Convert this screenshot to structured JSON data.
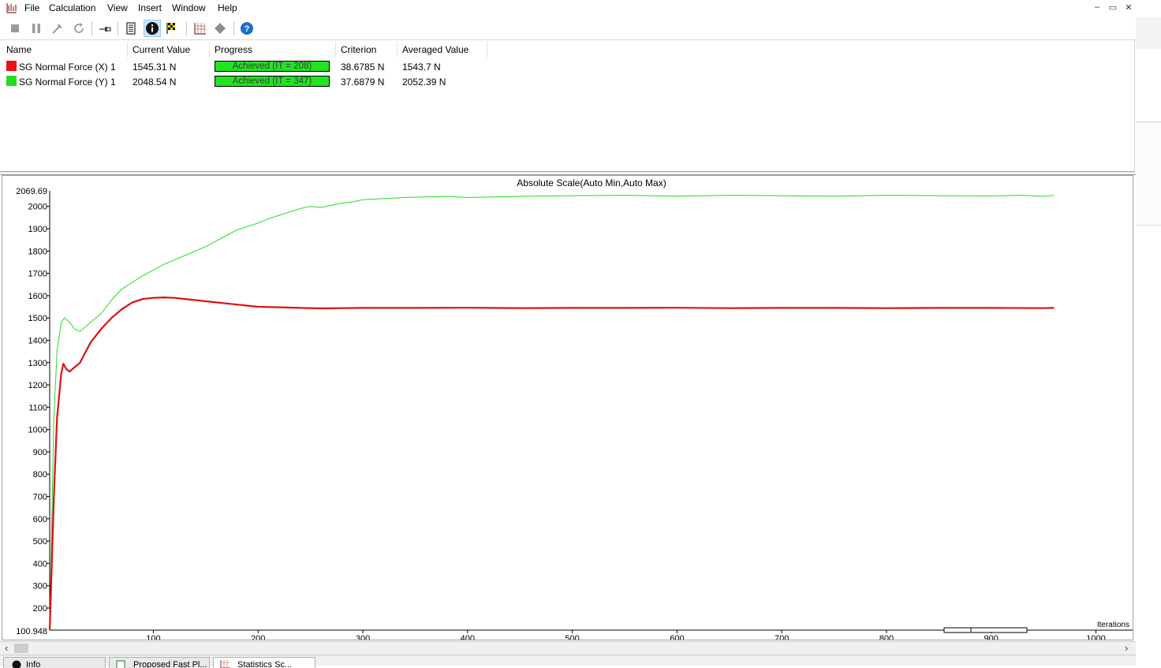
{
  "menu": {
    "items": [
      "File",
      "Calculation",
      "View",
      "Insert",
      "Window",
      "Help"
    ]
  },
  "window_controls": {
    "minimize": "–",
    "restore": "▭",
    "close": "✕"
  },
  "toolbar": {
    "buttons": [
      "stop-icon",
      "pause-icon",
      "tool-icon",
      "refresh-icon",
      "pin-icon",
      "document-icon",
      "info-icon",
      "checkered-flag-icon",
      "chart-icon",
      "diamond-icon",
      "help-icon"
    ],
    "active": "info-icon"
  },
  "table": {
    "headers": [
      "Name",
      "Current Value",
      "Progress",
      "Criterion",
      "Averaged Value"
    ],
    "rows": [
      {
        "color": "#ee1111",
        "name": "SG Normal Force (X) 1",
        "current": "1545.31 N",
        "progress": "Achieved (IT = 208)",
        "criterion": "38.6785 N",
        "averaged": "1543.7 N"
      },
      {
        "color": "#22dd22",
        "name": "SG Normal Force (Y) 1",
        "current": "2048.54 N",
        "progress": "Achieved (IT = 347)",
        "criterion": "37.6879 N",
        "averaged": "2052.39 N"
      }
    ]
  },
  "chart_data": {
    "type": "line",
    "title": "Absolute Scale(Auto Min,Auto Max)",
    "xlabel": "Iterations",
    "ylabel": "",
    "xlim": [
      1,
      1035
    ],
    "ylim": [
      100.948,
      2069.69
    ],
    "y_min_label": "100.948",
    "y_max_label": "2069.69",
    "xticks": [
      100,
      200,
      300,
      400,
      500,
      600,
      700,
      800,
      900,
      1000
    ],
    "yticks": [
      200,
      300,
      400,
      500,
      600,
      700,
      800,
      900,
      1000,
      1100,
      1200,
      1300,
      1400,
      1500,
      1600,
      1700,
      1800,
      1900,
      2000
    ],
    "grid": false,
    "series": [
      {
        "color": "#22dd22",
        "x": [
          1,
          3,
          5,
          8,
          12,
          15,
          20,
          25,
          30,
          40,
          50,
          60,
          70,
          80,
          90,
          100,
          110,
          120,
          130,
          140,
          150,
          160,
          170,
          180,
          190,
          200,
          210,
          220,
          230,
          240,
          250,
          260,
          270,
          280,
          290,
          300,
          320,
          340,
          360,
          380,
          400,
          450,
          500,
          550,
          600,
          650,
          700,
          750,
          800,
          850,
          900,
          930,
          950,
          960
        ],
        "y": [
          100,
          600,
          1050,
          1350,
          1480,
          1500,
          1480,
          1450,
          1440,
          1480,
          1520,
          1580,
          1630,
          1660,
          1690,
          1715,
          1740,
          1760,
          1780,
          1800,
          1820,
          1845,
          1870,
          1895,
          1910,
          1925,
          1945,
          1960,
          1975,
          1990,
          2000,
          1995,
          2005,
          2015,
          2020,
          2030,
          2035,
          2040,
          2042,
          2045,
          2040,
          2045,
          2048,
          2050,
          2046,
          2050,
          2048,
          2046,
          2050,
          2048,
          2047,
          2050,
          2045,
          2050
        ]
      },
      {
        "color": "#dd1111",
        "x": [
          1,
          3,
          5,
          8,
          12,
          14,
          17,
          20,
          25,
          30,
          40,
          50,
          60,
          70,
          80,
          90,
          100,
          110,
          120,
          130,
          140,
          150,
          160,
          170,
          180,
          190,
          200,
          220,
          240,
          260,
          280,
          300,
          350,
          400,
          450,
          500,
          550,
          600,
          650,
          700,
          750,
          800,
          850,
          900,
          950,
          960
        ],
        "y": [
          101,
          400,
          700,
          1050,
          1250,
          1295,
          1270,
          1260,
          1280,
          1300,
          1390,
          1450,
          1500,
          1540,
          1570,
          1585,
          1590,
          1592,
          1590,
          1585,
          1580,
          1575,
          1570,
          1565,
          1560,
          1555,
          1550,
          1548,
          1545,
          1543,
          1544,
          1545,
          1545,
          1546,
          1544,
          1545,
          1545,
          1546,
          1544,
          1545,
          1545,
          1544,
          1545,
          1545,
          1544,
          1545
        ]
      }
    ]
  },
  "tabs": [
    "Info",
    "Proposed Fast Pl...",
    "Statistics Sc..."
  ],
  "scroll_arrows": {
    "left": "‹",
    "right": "›"
  }
}
